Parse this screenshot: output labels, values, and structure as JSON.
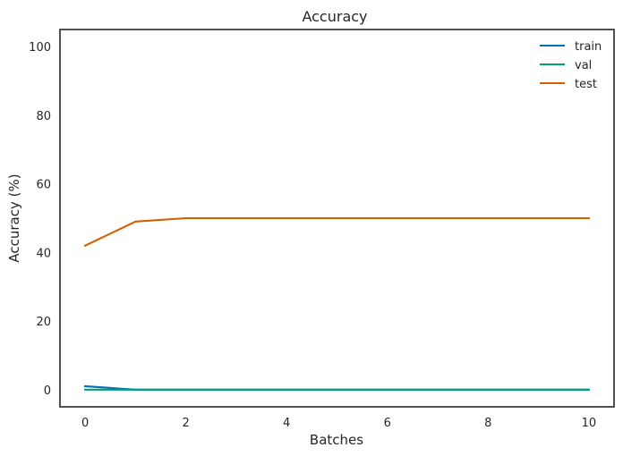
{
  "chart_data": {
    "type": "line",
    "title": "Accuracy",
    "xlabel": "Batches",
    "ylabel": "Accuracy (%)",
    "x": [
      0,
      1,
      2,
      3,
      4,
      5,
      6,
      7,
      8,
      9,
      10
    ],
    "xlim": [
      -0.5,
      10.5
    ],
    "ylim": [
      -5,
      105
    ],
    "xticks": [
      0,
      2,
      4,
      6,
      8,
      10
    ],
    "yticks": [
      0,
      20,
      40,
      60,
      80,
      100
    ],
    "grid": false,
    "legend_position": "top-right",
    "series": [
      {
        "name": "train",
        "color": "#0072b2",
        "values": [
          1,
          0,
          0,
          0,
          0,
          0,
          0,
          0,
          0,
          0,
          0
        ]
      },
      {
        "name": "val",
        "color": "#009e73",
        "values": [
          0,
          0,
          0,
          0,
          0,
          0,
          0,
          0,
          0,
          0,
          0
        ]
      },
      {
        "name": "test",
        "color": "#d55e00",
        "values": [
          42,
          49,
          50,
          50,
          50,
          50,
          50,
          50,
          50,
          50,
          50
        ]
      }
    ]
  }
}
